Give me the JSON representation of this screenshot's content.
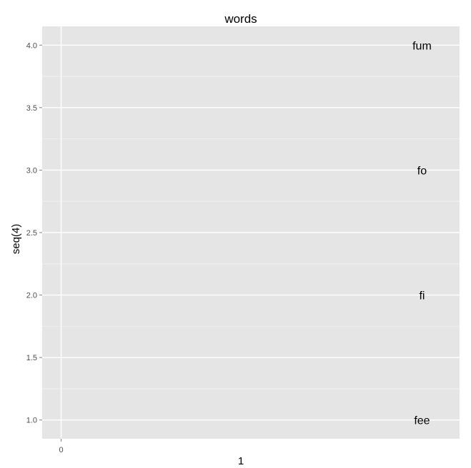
{
  "chart_data": {
    "type": "scatter",
    "title": "words",
    "xlabel": "1",
    "ylabel": "seq(4)",
    "xlim": [
      -0.05,
      1.05
    ],
    "ylim": [
      0.85,
      4.15
    ],
    "x_ticks": [
      0
    ],
    "x_tick_labels": [
      "0"
    ],
    "y_ticks": [
      1.0,
      1.5,
      2.0,
      2.5,
      3.0,
      3.5,
      4.0
    ],
    "y_tick_labels": [
      "1.0",
      "1.5",
      "2.0",
      "2.5",
      "3.0",
      "3.5",
      "4.0"
    ],
    "grid": true,
    "points": [
      {
        "x": 1,
        "y": 1,
        "label": "fee"
      },
      {
        "x": 1,
        "y": 2,
        "label": "fi"
      },
      {
        "x": 1,
        "y": 3,
        "label": "fo"
      },
      {
        "x": 1,
        "y": 4,
        "label": "fum"
      }
    ],
    "colors": {
      "panel_background": "#e5e5e5",
      "grid_major": "#ffffff",
      "grid_minor": "#f2f2f2",
      "tick_label": "#4d4d4d",
      "text": "#000000"
    }
  }
}
